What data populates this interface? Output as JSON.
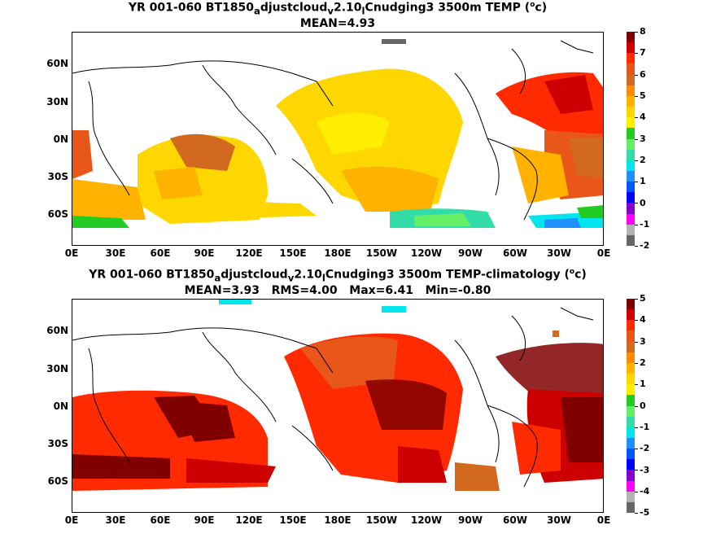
{
  "panel_top": {
    "title_line1": "YR 001-060 BT1850",
    "title_sub1": "a",
    "title_mid1": "djustcloud",
    "title_sub2": "v",
    "title_mid2": "2.10",
    "title_sub3": "l",
    "title_end": "Cnudging3 3500m TEMP (",
    "title_deg": "o",
    "title_unit": "c)",
    "stats": "MEAN=4.93",
    "lat_labels": [
      "60N",
      "30N",
      "0N",
      "30S",
      "60S"
    ],
    "lon_labels": [
      "0E",
      "30E",
      "60E",
      "90E",
      "120E",
      "150E",
      "180E",
      "150W",
      "120W",
      "90W",
      "60W",
      "30W",
      "0E"
    ],
    "colorbar_labels": [
      "8",
      "7",
      "6",
      "5",
      "4",
      "3",
      "2",
      "1",
      "0",
      "-1",
      "-2"
    ],
    "colorbar_colors": [
      "#800000",
      "#cc0000",
      "#ff2a00",
      "#e8561a",
      "#d2691e",
      "#ff8c00",
      "#ffb300",
      "#ffd700",
      "#ffee00",
      "#22cc22",
      "#66ee66",
      "#33ddaa",
      "#00e5ee",
      "#1e90ff",
      "#0055ff",
      "#0000ff",
      "#8800cc",
      "#ff00ff",
      "#b3b3b3",
      "#666666"
    ]
  },
  "panel_bottom": {
    "title_line1": "YR 001-060 BT1850",
    "title_sub1": "a",
    "title_mid1": "djustcloud",
    "title_sub2": "v",
    "title_mid2": "2.10",
    "title_sub3": "l",
    "title_end": "Cnudging3 3500m TEMP-climatology (",
    "title_deg": "o",
    "title_unit": "c)",
    "stats": "MEAN=3.93   RMS=4.00   Max=6.41   Min=-0.80",
    "lat_labels": [
      "60N",
      "30N",
      "0N",
      "30S",
      "60S"
    ],
    "lon_labels": [
      "0E",
      "30E",
      "60E",
      "90E",
      "120E",
      "150E",
      "180E",
      "150W",
      "120W",
      "90W",
      "60W",
      "30W",
      "0E"
    ],
    "colorbar_labels": [
      "5",
      "4",
      "3",
      "2",
      "1",
      "0",
      "-1",
      "-2",
      "-3",
      "-4",
      "-5"
    ],
    "colorbar_colors": [
      "#800000",
      "#cc0000",
      "#ff2a00",
      "#e8561a",
      "#d2691e",
      "#ff8c00",
      "#ffb300",
      "#ffd700",
      "#ffee00",
      "#22cc22",
      "#66ee66",
      "#33ddaa",
      "#00e5ee",
      "#1e90ff",
      "#0055ff",
      "#0000ff",
      "#8800cc",
      "#ff00ff",
      "#b3b3b3",
      "#666666"
    ]
  }
}
